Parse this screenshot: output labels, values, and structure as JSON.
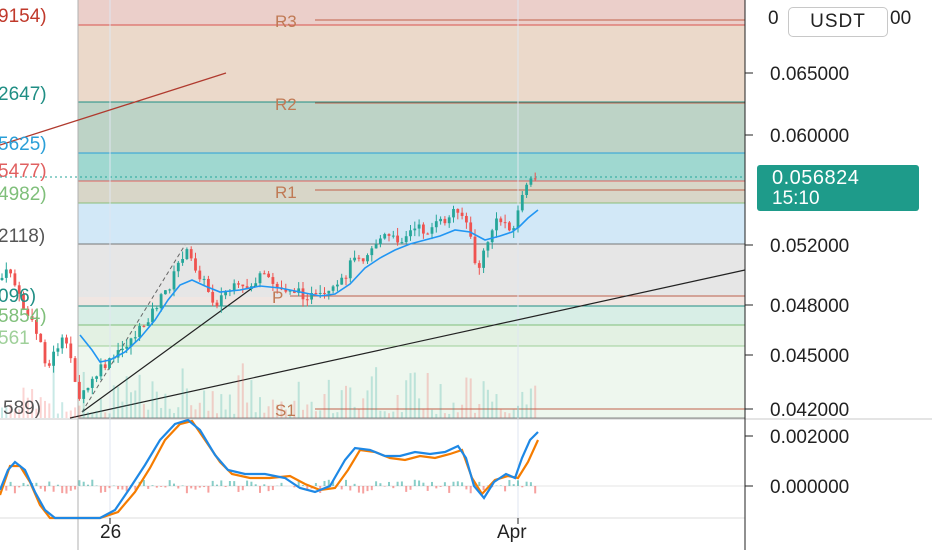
{
  "quote_currency": "USDT",
  "last_price": "0.056824",
  "countdown": "15:10",
  "price_axis": [
    "0.070000",
    "0.065000",
    "0.060000",
    "0.052000",
    "0.048000",
    "0.045000",
    "0.042000"
  ],
  "price_axis_top_partial": "0",
  "price_axis_top_tail": "00",
  "oscillator_axis": [
    "0.002000",
    "0.000000"
  ],
  "date_axis": [
    "26",
    "Apr"
  ],
  "pivot_labels": [
    "R3",
    "R2",
    "R1",
    "P",
    "S1"
  ],
  "left_labels": [
    "9154)",
    "2647)",
    "5625)",
    "5477)",
    "4982)",
    "2118)",
    "096)",
    "5854)",
    "561",
    "589)"
  ],
  "colors": {
    "up": "#26a69a",
    "down": "#ef5350",
    "ma_line": "#2196f3",
    "macd_line": "#1e88e5",
    "signal_line": "#f57c00",
    "price_tag": "#1e9b8a"
  },
  "icons": {
    "currency": "dropdown-button"
  }
}
